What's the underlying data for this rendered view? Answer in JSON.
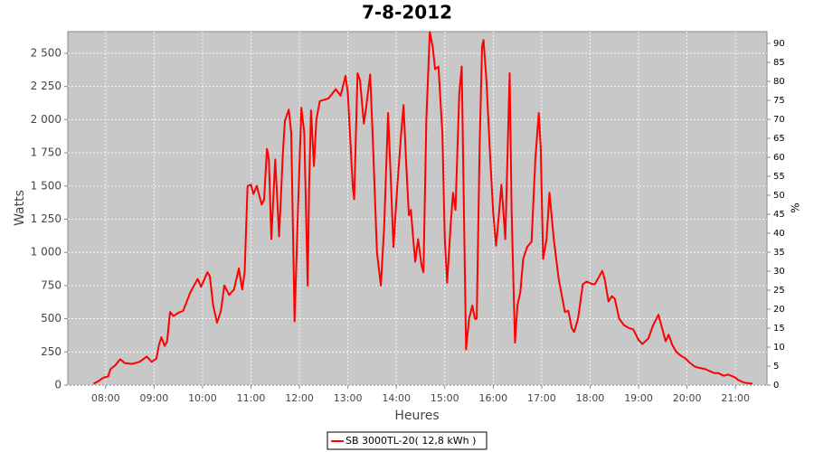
{
  "chart_data": {
    "type": "line",
    "title": "7-8-2012",
    "xlabel": "Heures",
    "ylabel": "Watts",
    "y2label": "%",
    "x": [
      7.75,
      7.85,
      7.95,
      8.05,
      8.1,
      8.2,
      8.3,
      8.4,
      8.55,
      8.7,
      8.85,
      8.95,
      9.05,
      9.1,
      9.15,
      9.22,
      9.27,
      9.33,
      9.4,
      9.5,
      9.6,
      9.75,
      9.9,
      9.97,
      10.1,
      10.15,
      10.22,
      10.3,
      10.38,
      10.45,
      10.55,
      10.65,
      10.75,
      10.82,
      10.87,
      10.93,
      11.0,
      11.05,
      11.12,
      11.22,
      11.27,
      11.33,
      11.37,
      11.42,
      11.5,
      11.58,
      11.66,
      11.7,
      11.78,
      11.83,
      11.9,
      11.96,
      12.04,
      12.1,
      12.17,
      12.2,
      12.24,
      12.3,
      12.35,
      12.42,
      12.6,
      12.75,
      12.85,
      12.95,
      13.0,
      13.1,
      13.13,
      13.2,
      13.25,
      13.33,
      13.38,
      13.46,
      13.52,
      13.6,
      13.68,
      13.75,
      13.83,
      13.88,
      13.94,
      14.02,
      14.1,
      14.15,
      14.2,
      14.26,
      14.3,
      14.35,
      14.39,
      14.45,
      14.52,
      14.56,
      14.62,
      14.69,
      14.75,
      14.8,
      14.87,
      14.95,
      15.0,
      15.05,
      15.12,
      15.17,
      15.22,
      15.3,
      15.35,
      15.4,
      15.44,
      15.5,
      15.57,
      15.62,
      15.66,
      15.72,
      15.77,
      15.8,
      15.86,
      15.94,
      16.0,
      16.06,
      16.12,
      16.17,
      16.25,
      16.3,
      16.34,
      16.38,
      16.45,
      16.5,
      16.56,
      16.62,
      16.7,
      16.79,
      16.87,
      16.94,
      16.98,
      17.03,
      17.1,
      17.16,
      17.25,
      17.35,
      17.48,
      17.55,
      17.62,
      17.67,
      17.75,
      17.85,
      17.93,
      18.05,
      18.1,
      18.25,
      18.3,
      18.38,
      18.45,
      18.51,
      18.6,
      18.7,
      18.8,
      18.89,
      19.0,
      19.08,
      19.2,
      19.3,
      19.41,
      19.47,
      19.56,
      19.62,
      19.7,
      19.78,
      19.88,
      19.97,
      20.05,
      20.16,
      20.25,
      20.38,
      20.5,
      20.57,
      20.65,
      20.76,
      20.85,
      20.98,
      21.05,
      21.17,
      21.25,
      21.35
    ],
    "series": [
      {
        "name": "SB 3000TL-20( 12,8 kWh )",
        "color": "#ff0000",
        "values": [
          10,
          30,
          55,
          65,
          120,
          150,
          195,
          165,
          160,
          175,
          215,
          175,
          200,
          300,
          360,
          295,
          330,
          550,
          520,
          545,
          560,
          700,
          800,
          740,
          850,
          820,
          600,
          470,
          560,
          750,
          680,
          720,
          880,
          720,
          850,
          1500,
          1510,
          1440,
          1500,
          1360,
          1400,
          1780,
          1700,
          1100,
          1700,
          1120,
          1750,
          1990,
          2075,
          1900,
          480,
          1200,
          2090,
          1900,
          750,
          1500,
          2070,
          1650,
          2000,
          2140,
          2160,
          2230,
          2180,
          2330,
          2200,
          1500,
          1400,
          2350,
          2300,
          1970,
          2100,
          2340,
          1800,
          1000,
          750,
          1200,
          2050,
          1600,
          1040,
          1500,
          1900,
          2110,
          1700,
          1280,
          1320,
          1100,
          930,
          1100,
          900,
          850,
          2000,
          2660,
          2550,
          2380,
          2400,
          1900,
          1100,
          770,
          1200,
          1450,
          1320,
          2200,
          2400,
          1200,
          270,
          500,
          600,
          500,
          500,
          1800,
          2550,
          2600,
          2300,
          1700,
          1300,
          1050,
          1300,
          1510,
          1100,
          1800,
          2350,
          1300,
          320,
          600,
          700,
          950,
          1040,
          1080,
          1700,
          2050,
          1800,
          950,
          1100,
          1450,
          1100,
          800,
          550,
          560,
          430,
          400,
          500,
          760,
          780,
          760,
          760,
          860,
          800,
          630,
          670,
          650,
          500,
          450,
          430,
          420,
          340,
          310,
          350,
          450,
          530,
          450,
          330,
          380,
          300,
          250,
          220,
          200,
          170,
          140,
          130,
          120,
          100,
          90,
          90,
          70,
          80,
          60,
          40,
          20,
          15,
          10
        ]
      }
    ],
    "xlim": [
      7.22,
      21.65
    ],
    "xticks": [
      {
        "value": 8,
        "label": "08:00"
      },
      {
        "value": 9,
        "label": "09:00"
      },
      {
        "value": 10,
        "label": "10:00"
      },
      {
        "value": 11,
        "label": "11:00"
      },
      {
        "value": 12,
        "label": "12:00"
      },
      {
        "value": 13,
        "label": "13:00"
      },
      {
        "value": 14,
        "label": "14:00"
      },
      {
        "value": 15,
        "label": "15:00"
      },
      {
        "value": 16,
        "label": "16:00"
      },
      {
        "value": 17,
        "label": "17:00"
      },
      {
        "value": 18,
        "label": "18:00"
      },
      {
        "value": 19,
        "label": "19:00"
      },
      {
        "value": 20,
        "label": "20:00"
      },
      {
        "value": 21,
        "label": "21:00"
      }
    ],
    "ylim": [
      0,
      2663
    ],
    "yticks": [
      0,
      250,
      500,
      750,
      {
        "value": 1000,
        "label": "1 000"
      },
      {
        "value": 1250,
        "label": "1 250"
      },
      {
        "value": 1500,
        "label": "1 500"
      },
      {
        "value": 1750,
        "label": "1 750"
      },
      {
        "value": 2000,
        "label": "2 000"
      },
      {
        "value": 2250,
        "label": "2 250"
      },
      {
        "value": 2500,
        "label": "2 500"
      }
    ],
    "y2lim": [
      0,
      93.1
    ],
    "y2ticks": [
      0,
      5,
      10,
      15,
      20,
      25,
      30,
      35,
      40,
      45,
      50,
      55,
      60,
      65,
      70,
      75,
      80,
      85,
      90
    ],
    "grid": true
  }
}
